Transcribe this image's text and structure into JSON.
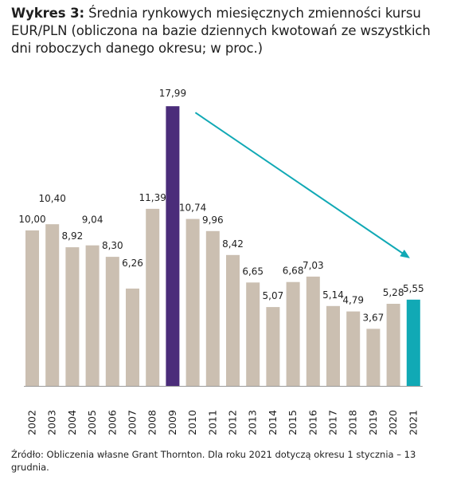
{
  "title": {
    "label": "Wykres 3:",
    "text": "Średnia rynkowych miesięcznych zmienności kursu EUR/PLN (obliczona na bazie dziennych kwotowań ze wszystkich dni roboczych danego okresu; w proc.)"
  },
  "source": "Źródło: Obliczenia własne Grant Thornton. Dla roku 2021 dotyczą okresu 1 stycznia – 13 grudnia.",
  "colors": {
    "default_bar": "#cbbfb1",
    "highlight_2009": "#4b2c7a",
    "highlight_2021": "#11a9b5",
    "arrow": "#11a9b5",
    "axis": "#9a9a9a"
  },
  "chart_data": {
    "type": "bar",
    "categories": [
      "2002",
      "2003",
      "2004",
      "2005",
      "2006",
      "2007",
      "2008",
      "2009",
      "2010",
      "2011",
      "2012",
      "2013",
      "2014",
      "2015",
      "2016",
      "2017",
      "2018",
      "2019",
      "2020",
      "2021"
    ],
    "values": [
      10.0,
      10.4,
      8.92,
      9.04,
      8.3,
      6.26,
      11.39,
      17.99,
      10.74,
      9.96,
      8.42,
      6.65,
      5.07,
      6.68,
      7.03,
      5.14,
      4.79,
      3.67,
      5.28,
      5.55
    ],
    "value_labels": [
      "10,00",
      "10,40",
      "8,92",
      "9,04",
      "8,30",
      "6,26",
      "11,39",
      "17,99",
      "10,74",
      "9,96",
      "8,42",
      "6,65",
      "5,07",
      "6,68",
      "7,03",
      "5,14",
      "4,79",
      "3,67",
      "5,28",
      "5,55"
    ],
    "highlights": {
      "2009": "highlight_2009",
      "2021": "highlight_2021"
    },
    "annotations": [
      {
        "type": "arrow",
        "from_category": "2009",
        "to_category": "2021",
        "meaning": "trend arrow pointing downward"
      }
    ],
    "ylim": [
      0,
      18
    ],
    "grid": false,
    "xlabel": "",
    "ylabel": ""
  }
}
